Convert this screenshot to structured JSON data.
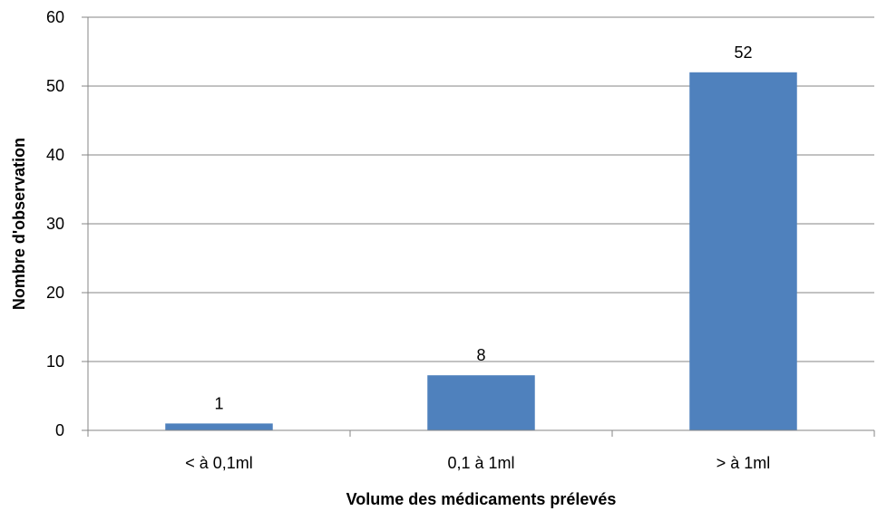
{
  "chart_data": {
    "type": "bar",
    "categories": [
      "< à 0,1ml",
      "0,1 à 1ml",
      "> à 1ml"
    ],
    "values": [
      1,
      8,
      52
    ],
    "data_labels": [
      "1",
      "8",
      "52"
    ],
    "title": "",
    "xlabel": "Volume des médicaments prélevés",
    "ylabel": "Nombre d'observation",
    "ylim": [
      0,
      60
    ],
    "yticks": [
      0,
      10,
      20,
      30,
      40,
      50,
      60
    ],
    "ytick_labels": [
      "0",
      "10",
      "20",
      "30",
      "40",
      "50",
      "60"
    ],
    "grid": true,
    "legend": "none",
    "bar_color": "#4F81BD"
  }
}
